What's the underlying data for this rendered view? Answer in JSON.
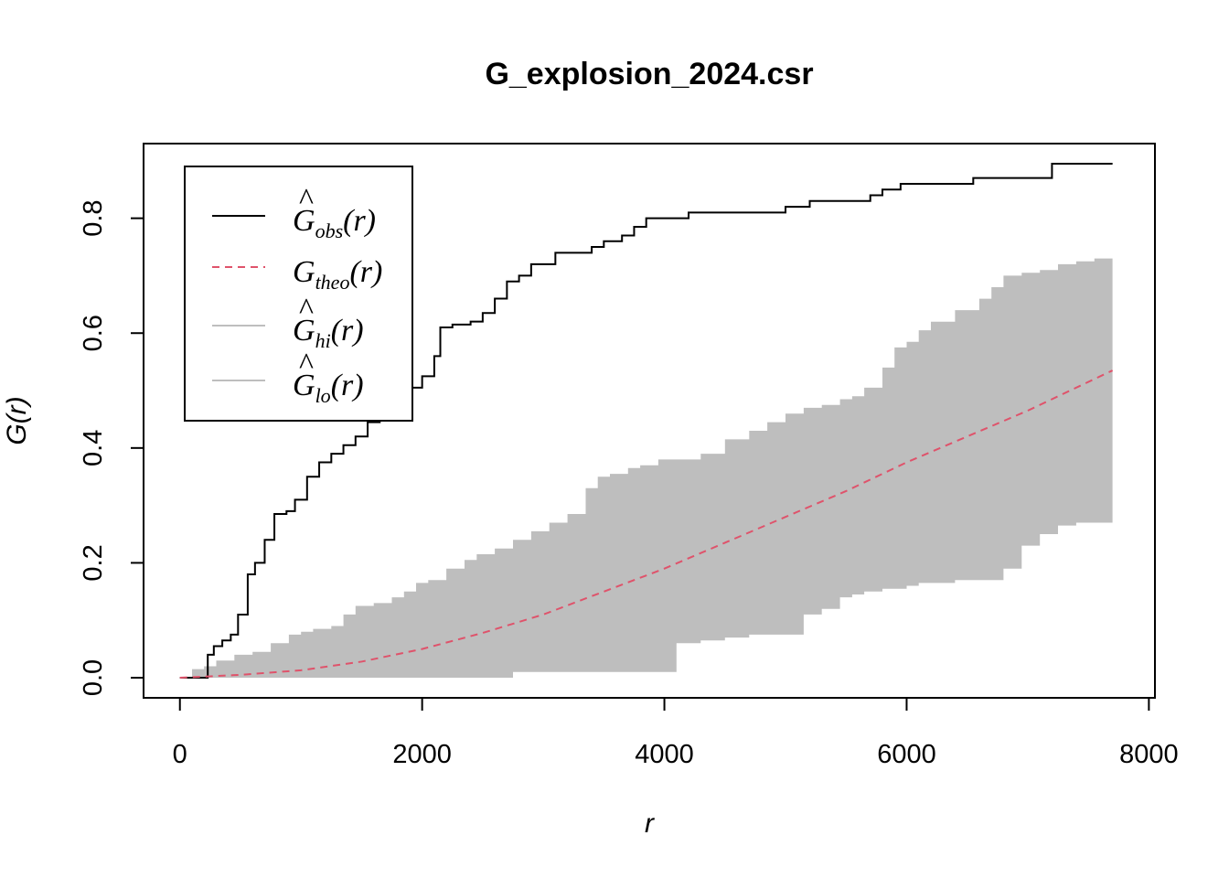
{
  "chart_data": {
    "type": "line",
    "title": "G_explosion_2024.csr",
    "xlabel": "r",
    "ylabel": "G(r)",
    "xlim": [
      -300,
      8050
    ],
    "ylim": [
      -0.035,
      0.93
    ],
    "x_ticks": [
      "0",
      "2000",
      "4000",
      "6000",
      "8000"
    ],
    "x_tick_values": [
      0,
      2000,
      4000,
      6000,
      8000
    ],
    "y_ticks": [
      "0.0",
      "0.2",
      "0.4",
      "0.6",
      "0.8"
    ],
    "y_tick_values": [
      0,
      0.2,
      0.4,
      0.6,
      0.8
    ],
    "grid": false,
    "legend_position": "top-left",
    "legend": [
      {
        "hat": true,
        "letter": "G",
        "sub": "obs",
        "arg": "(r)",
        "style": "solid",
        "color": "#000000"
      },
      {
        "hat": false,
        "letter": "G",
        "sub": "theo",
        "arg": "(r)",
        "style": "dashed",
        "color": "#DF536B"
      },
      {
        "hat": true,
        "letter": "G",
        "sub": "hi",
        "arg": "(r)",
        "style": "solid",
        "color": "#BEBEBE"
      },
      {
        "hat": true,
        "letter": "G",
        "sub": "lo",
        "arg": "(r)",
        "style": "solid",
        "color": "#BEBEBE"
      }
    ],
    "series": [
      {
        "key": "obs",
        "style": "step",
        "color": "#000000",
        "x": [
          0,
          180,
          230,
          280,
          350,
          420,
          480,
          560,
          620,
          700,
          780,
          820,
          880,
          950,
          1050,
          1150,
          1250,
          1350,
          1450,
          1550,
          1650,
          1800,
          1880,
          2000,
          2100,
          2150,
          2250,
          2400,
          2500,
          2600,
          2700,
          2800,
          2900,
          3100,
          3300,
          3400,
          3500,
          3650,
          3750,
          3850,
          4000,
          4200,
          4500,
          4800,
          5000,
          5200,
          5500,
          5700,
          5800,
          5950,
          6400,
          6550,
          7100,
          7200,
          7700
        ],
        "y": [
          0,
          0.0,
          0.04,
          0.055,
          0.065,
          0.075,
          0.11,
          0.18,
          0.2,
          0.24,
          0.285,
          0.285,
          0.29,
          0.31,
          0.35,
          0.375,
          0.39,
          0.405,
          0.42,
          0.445,
          0.46,
          0.49,
          0.505,
          0.525,
          0.56,
          0.61,
          0.615,
          0.62,
          0.635,
          0.66,
          0.69,
          0.7,
          0.72,
          0.74,
          0.74,
          0.75,
          0.76,
          0.77,
          0.785,
          0.8,
          0.8,
          0.81,
          0.81,
          0.81,
          0.82,
          0.83,
          0.83,
          0.84,
          0.85,
          0.86,
          0.86,
          0.87,
          0.87,
          0.895,
          0.895
        ]
      },
      {
        "key": "theo",
        "style": "dashed",
        "color": "#DF536B",
        "x": [
          0,
          500,
          1000,
          1500,
          2000,
          2500,
          3000,
          3500,
          4000,
          4500,
          5000,
          5500,
          6000,
          6500,
          7000,
          7700
        ],
        "y": [
          0,
          0.005,
          0.013,
          0.028,
          0.05,
          0.078,
          0.11,
          0.15,
          0.19,
          0.235,
          0.28,
          0.325,
          0.375,
          0.42,
          0.465,
          0.535
        ]
      }
    ],
    "envelope": {
      "color": "#BEBEBE",
      "x": [
        0,
        100,
        200,
        300,
        450,
        600,
        750,
        900,
        1000,
        1100,
        1250,
        1350,
        1450,
        1600,
        1750,
        1850,
        1950,
        2050,
        2200,
        2350,
        2450,
        2600,
        2750,
        2900,
        3050,
        3200,
        3350,
        3450,
        3550,
        3700,
        3800,
        3950,
        4100,
        4300,
        4500,
        4700,
        4850,
        5000,
        5150,
        5300,
        5450,
        5550,
        5650,
        5800,
        5900,
        6000,
        6100,
        6200,
        6400,
        6600,
        6700,
        6800,
        6950,
        7100,
        7250,
        7400,
        7550,
        7700
      ],
      "hi": [
        0,
        0.015,
        0.02,
        0.03,
        0.04,
        0.045,
        0.06,
        0.075,
        0.08,
        0.085,
        0.09,
        0.11,
        0.125,
        0.13,
        0.14,
        0.15,
        0.165,
        0.17,
        0.19,
        0.205,
        0.215,
        0.225,
        0.24,
        0.255,
        0.27,
        0.285,
        0.33,
        0.35,
        0.355,
        0.365,
        0.37,
        0.38,
        0.38,
        0.39,
        0.415,
        0.43,
        0.445,
        0.46,
        0.47,
        0.475,
        0.485,
        0.49,
        0.505,
        0.54,
        0.575,
        0.585,
        0.605,
        0.62,
        0.64,
        0.66,
        0.68,
        0.7,
        0.705,
        0.71,
        0.72,
        0.725,
        0.73,
        0.74
      ],
      "lo": [
        0,
        0,
        0,
        0,
        0,
        0,
        0,
        0,
        0,
        0,
        0,
        0,
        0,
        0,
        0,
        0,
        0,
        0,
        0,
        0,
        0,
        0,
        0.01,
        0.01,
        0.01,
        0.01,
        0.01,
        0.01,
        0.01,
        0.01,
        0.01,
        0.01,
        0.06,
        0.065,
        0.07,
        0.075,
        0.075,
        0.075,
        0.11,
        0.12,
        0.14,
        0.145,
        0.15,
        0.155,
        0.155,
        0.16,
        0.165,
        0.165,
        0.17,
        0.17,
        0.17,
        0.19,
        0.23,
        0.25,
        0.265,
        0.27,
        0.27,
        0.3
      ]
    }
  }
}
